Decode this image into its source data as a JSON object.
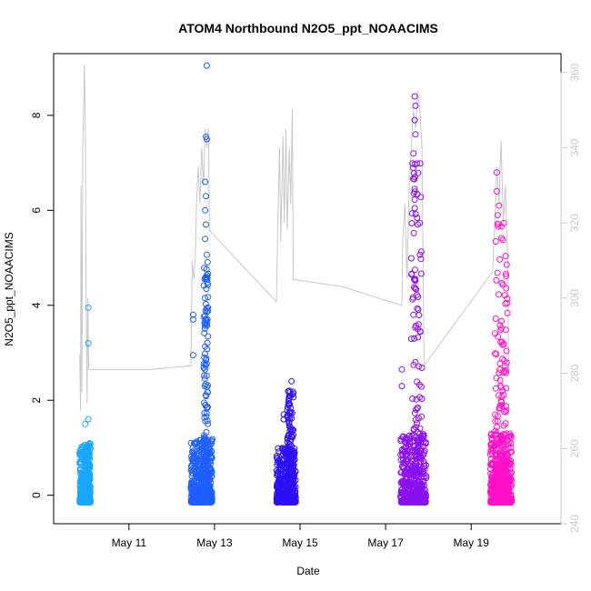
{
  "chart_data": {
    "type": "scatter",
    "title": "ATOM4 Northbound N2O5_ppt_NOAACIMS",
    "xlabel": "Date",
    "ylabel": "N2O5_ppt_NOAACIMS",
    "x_ticks": [
      "May 11",
      "May 13",
      "May 15",
      "May 17",
      "May 19"
    ],
    "x_tick_days": [
      11,
      13,
      15,
      17,
      19
    ],
    "xlim": [
      9.24,
      21.1
    ],
    "ylim": [
      -0.6,
      9.3
    ],
    "y_ticks": [
      0,
      2,
      4,
      6,
      8
    ],
    "y2lim": [
      240,
      365
    ],
    "y2_ticks": [
      240,
      260,
      280,
      300,
      320,
      340,
      360
    ],
    "grid": false,
    "legend": "none",
    "colors": {
      "flight1": "#19A6FF",
      "flight2": "#1F5FFF",
      "flight3": "#2D10F5",
      "flight4": "#8A10F0",
      "flight5": "#FF10C8",
      "line": "#c8c8c8",
      "axis": "#000000",
      "right_axis": "#c8c8c8"
    },
    "series": [
      {
        "color": "#19A6FF",
        "x_range": [
          9.85,
          10.1
        ],
        "cluster_max": 1.1,
        "outliers": [
          [
            10.05,
            3.95
          ],
          [
            10.05,
            3.2
          ],
          [
            10.05,
            1.6
          ],
          [
            9.98,
            1.5
          ]
        ]
      },
      {
        "color": "#1F5FFF",
        "x_range": [
          12.45,
          12.95
        ],
        "cluster_max": 1.2,
        "outliers": [
          [
            12.82,
            9.05
          ],
          [
            12.8,
            7.55
          ],
          [
            12.82,
            7.5
          ],
          [
            12.78,
            6.6
          ],
          [
            12.8,
            6.3
          ],
          [
            12.78,
            6.0
          ],
          [
            12.8,
            5.7
          ],
          [
            12.78,
            5.4
          ],
          [
            12.5,
            3.8
          ],
          [
            12.5,
            3.7
          ],
          [
            12.5,
            2.95
          ]
        ],
        "spike": {
          "x": [
            12.75,
            12.85
          ],
          "max": 5.2
        }
      },
      {
        "color": "#2D10F5",
        "x_range": [
          14.45,
          14.9
        ],
        "cluster_max": 1.0,
        "outliers": [
          [
            14.8,
            2.4
          ],
          [
            14.75,
            2.2
          ],
          [
            14.62,
            1.7
          ],
          [
            14.62,
            1.6
          ]
        ],
        "spike": {
          "x": [
            14.7,
            14.85
          ],
          "max": 2.2
        }
      },
      {
        "color": "#8A10F0",
        "x_range": [
          17.35,
          17.95
        ],
        "cluster_max": 1.3,
        "outliers": [
          [
            17.68,
            8.4
          ],
          [
            17.7,
            8.2
          ],
          [
            17.68,
            7.9
          ],
          [
            17.7,
            7.6
          ],
          [
            17.65,
            7.2
          ],
          [
            17.38,
            2.65
          ],
          [
            17.38,
            2.3
          ]
        ],
        "spike": {
          "x": [
            17.6,
            17.85
          ],
          "max": 7.0
        }
      },
      {
        "color": "#FF10C8",
        "x_range": [
          19.45,
          19.95
        ],
        "cluster_max": 1.3,
        "outliers": [
          [
            19.6,
            6.8
          ],
          [
            19.6,
            6.4
          ],
          [
            19.65,
            6.1
          ],
          [
            19.62,
            5.9
          ]
        ],
        "spike": {
          "x": [
            19.55,
            19.85
          ],
          "max": 5.8
        }
      }
    ],
    "line_series": [
      {
        "x": 9.85,
        "y": 285
      },
      {
        "x": 9.87,
        "y": 270
      },
      {
        "x": 9.88,
        "y": 330
      },
      {
        "x": 9.9,
        "y": 275
      },
      {
        "x": 9.92,
        "y": 340
      },
      {
        "x": 9.94,
        "y": 350
      },
      {
        "x": 9.96,
        "y": 362
      },
      {
        "x": 9.98,
        "y": 345
      },
      {
        "x": 10.0,
        "y": 300
      },
      {
        "x": 10.02,
        "y": 272
      },
      {
        "x": 10.04,
        "y": 300
      },
      {
        "x": 10.06,
        "y": 281
      },
      {
        "x": 11.5,
        "y": 281
      },
      {
        "x": 12.45,
        "y": 282
      },
      {
        "x": 12.48,
        "y": 310
      },
      {
        "x": 12.52,
        "y": 305
      },
      {
        "x": 12.55,
        "y": 310
      },
      {
        "x": 12.58,
        "y": 325
      },
      {
        "x": 12.62,
        "y": 335
      },
      {
        "x": 12.66,
        "y": 325
      },
      {
        "x": 12.7,
        "y": 340
      },
      {
        "x": 12.74,
        "y": 330
      },
      {
        "x": 12.78,
        "y": 345
      },
      {
        "x": 12.82,
        "y": 340
      },
      {
        "x": 12.86,
        "y": 345
      },
      {
        "x": 12.88,
        "y": 318
      },
      {
        "x": 14.45,
        "y": 299
      },
      {
        "x": 14.48,
        "y": 320
      },
      {
        "x": 14.52,
        "y": 340
      },
      {
        "x": 14.55,
        "y": 315
      },
      {
        "x": 14.6,
        "y": 343
      },
      {
        "x": 14.63,
        "y": 320
      },
      {
        "x": 14.67,
        "y": 345
      },
      {
        "x": 14.7,
        "y": 318
      },
      {
        "x": 14.75,
        "y": 340
      },
      {
        "x": 14.78,
        "y": 325
      },
      {
        "x": 14.82,
        "y": 350
      },
      {
        "x": 14.84,
        "y": 305
      },
      {
        "x": 16.0,
        "y": 303
      },
      {
        "x": 17.38,
        "y": 298
      },
      {
        "x": 17.4,
        "y": 315
      },
      {
        "x": 17.45,
        "y": 325
      },
      {
        "x": 17.5,
        "y": 305
      },
      {
        "x": 17.55,
        "y": 330
      },
      {
        "x": 17.6,
        "y": 340
      },
      {
        "x": 17.65,
        "y": 350
      },
      {
        "x": 17.7,
        "y": 345
      },
      {
        "x": 17.75,
        "y": 355
      },
      {
        "x": 17.8,
        "y": 350
      },
      {
        "x": 17.85,
        "y": 340
      },
      {
        "x": 17.9,
        "y": 282
      },
      {
        "x": 19.5,
        "y": 307
      },
      {
        "x": 19.55,
        "y": 320
      },
      {
        "x": 19.6,
        "y": 335
      },
      {
        "x": 19.65,
        "y": 325
      },
      {
        "x": 19.7,
        "y": 342
      },
      {
        "x": 19.75,
        "y": 320
      },
      {
        "x": 19.8,
        "y": 330
      },
      {
        "x": 19.85,
        "y": 310
      },
      {
        "x": 19.88,
        "y": 280
      }
    ]
  }
}
